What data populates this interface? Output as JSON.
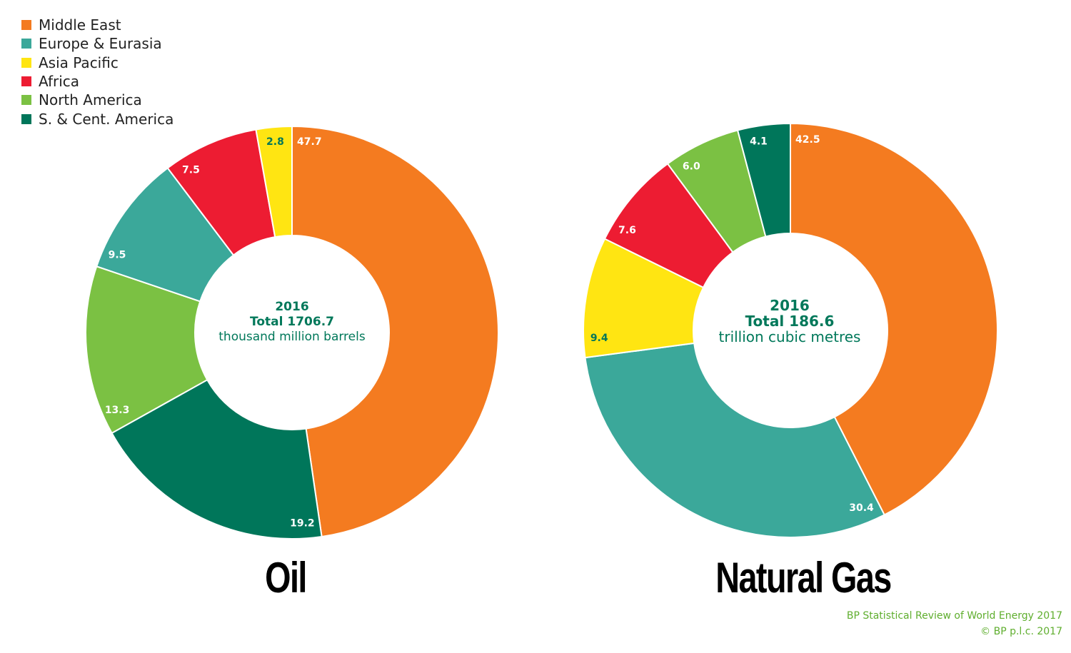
{
  "colors": {
    "Middle East": "#F47B20",
    "Europe & Eurasia": "#3BA89A",
    "Asia Pacific": "#FFE512",
    "Africa": "#ED1C32",
    "North America": "#7BC143",
    "S. & Cent. America": "#00765A"
  },
  "legend": [
    "Middle East",
    "Europe & Eurasia",
    "Asia Pacific",
    "Africa",
    "North America",
    "S. & Cent. America"
  ],
  "chart_data": [
    {
      "type": "pie",
      "donut": true,
      "title": "Oil",
      "center": {
        "year": "2016",
        "total": "Total 1706.7",
        "unit": "thousand million barrels"
      },
      "categories": [
        "Middle East",
        "S. & Cent. America",
        "North America",
        "Europe & Eurasia",
        "Africa",
        "Asia Pacific"
      ],
      "values": [
        47.7,
        19.2,
        13.3,
        9.5,
        7.5,
        2.8
      ],
      "labels": [
        "47.7",
        "19.2",
        "13.3",
        "9.5",
        "7.5",
        "2.8"
      ]
    },
    {
      "type": "pie",
      "donut": true,
      "title": "Natural Gas",
      "center": {
        "year": "2016",
        "total": "Total 186.6",
        "unit": "trillion cubic metres"
      },
      "categories": [
        "Middle East",
        "Europe & Eurasia",
        "Asia Pacific",
        "Africa",
        "North America",
        "S. & Cent. America"
      ],
      "values": [
        42.5,
        30.4,
        9.4,
        7.6,
        6.0,
        4.1
      ],
      "labels": [
        "42.5",
        "30.4",
        "9.4",
        "7.6",
        "6.0",
        "4.1"
      ]
    }
  ],
  "credits": {
    "line1": "BP Statistical Review of World Energy 2017",
    "line2": "© BP p.l.c. 2017"
  }
}
